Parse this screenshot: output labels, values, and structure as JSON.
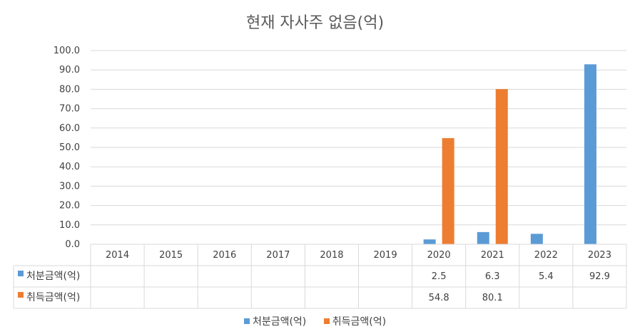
{
  "chart_data": {
    "type": "bar",
    "title": "현재 자사주 없음(억)",
    "categories": [
      "2014",
      "2015",
      "2016",
      "2017",
      "2018",
      "2019",
      "2020",
      "2021",
      "2022",
      "2023"
    ],
    "series": [
      {
        "name": "처분금액(억)",
        "color": "#5B9BD5",
        "values": [
          null,
          null,
          null,
          null,
          null,
          null,
          2.5,
          6.3,
          5.4,
          92.9
        ],
        "labels": [
          "",
          "",
          "",
          "",
          "",
          "",
          "2.5",
          "6.3",
          "5.4",
          "92.9"
        ]
      },
      {
        "name": "취득금액(억)",
        "color": "#ED7D31",
        "values": [
          null,
          null,
          null,
          null,
          null,
          null,
          54.8,
          80.1,
          null,
          null
        ],
        "labels": [
          "",
          "",
          "",
          "",
          "",
          "",
          "54.8",
          "80.1",
          "",
          ""
        ]
      }
    ],
    "ylim": [
      0,
      100
    ],
    "yticks": [
      "0.0",
      "10.0",
      "20.0",
      "30.0",
      "40.0",
      "50.0",
      "60.0",
      "70.0",
      "80.0",
      "90.0",
      "100.0"
    ],
    "grid": true,
    "legend_position": "bottom",
    "data_table": true
  }
}
